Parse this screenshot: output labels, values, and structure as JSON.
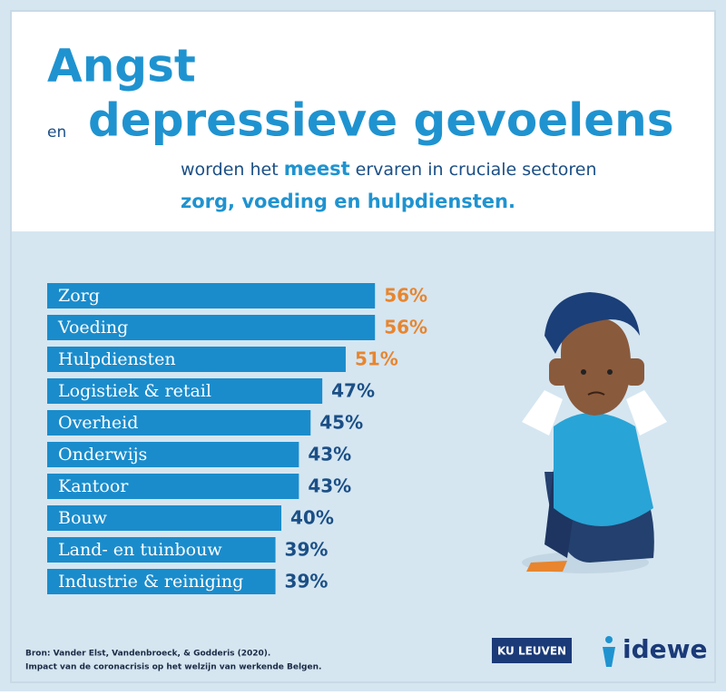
{
  "header": {
    "title_1": "Angst",
    "title_connector": "en",
    "title_2": "depressieve gevoelens",
    "subtitle_1": "worden het",
    "subtitle_emphasis": "meest",
    "subtitle_2": "ervaren in cruciale sectoren",
    "subtitle_3": "zorg, voeding en hulpdiensten."
  },
  "chart_data": {
    "type": "bar",
    "orientation": "horizontal",
    "color": "#1a8ccc",
    "categories": [
      "Zorg",
      "Voeding",
      "Hulpdiensten",
      "Logistiek & retail",
      "Overheid",
      "Onderwijs",
      "Kantoor",
      "Bouw",
      "Land- en tuinbouw",
      "Industrie & reiniging"
    ],
    "values": [
      56,
      56,
      51,
      47,
      45,
      43,
      43,
      40,
      39,
      39
    ],
    "value_labels": [
      "56%",
      "56%",
      "51%",
      "47%",
      "45%",
      "43%",
      "43%",
      "40%",
      "39%",
      "39%"
    ],
    "value_label_colors": [
      "#e8852e",
      "#e8852e",
      "#e8852e",
      "#1b4f86",
      "#1b4f86",
      "#1b4f86",
      "#1b4f86",
      "#1b4f86",
      "#1b4f86",
      "#1b4f86"
    ]
  },
  "footer": {
    "source_1": "Bron: Vander Elst, Vandenbroeck, & Godderis (2020).",
    "source_2": "Impact van de coronacrisis op het welzijn van werkende Belgen.",
    "logo_1": "KU LEUVEN",
    "logo_2": "idewe"
  }
}
